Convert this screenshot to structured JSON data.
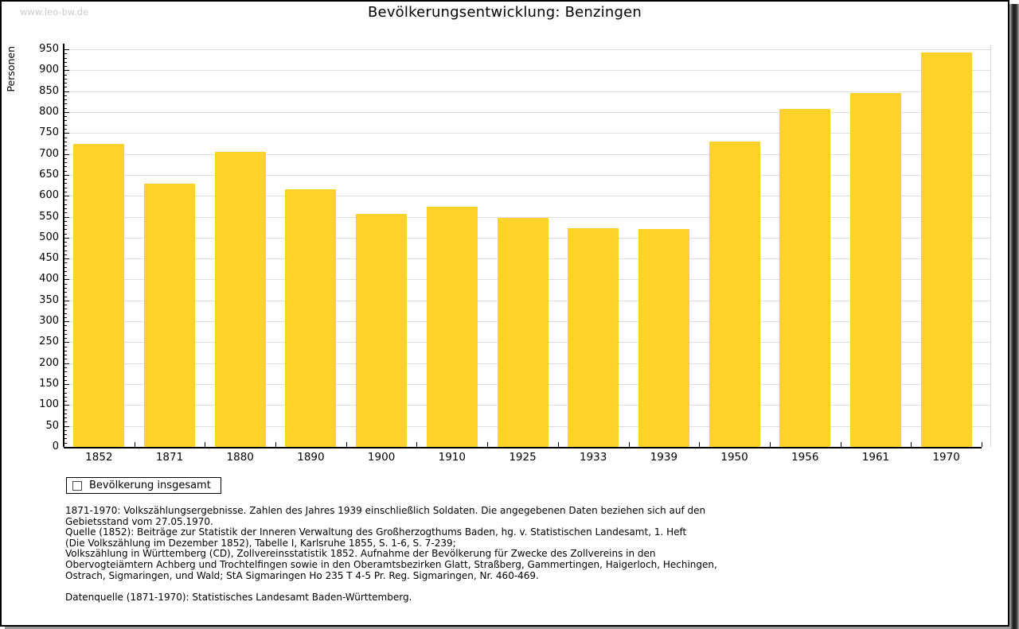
{
  "watermark": "www.leo-bw.de",
  "chart_data": {
    "type": "bar",
    "title": "Bevölkerungsentwicklung: Benzingen",
    "ylabel": "Personen",
    "xlabel": "",
    "categories": [
      "1852",
      "1871",
      "1880",
      "1890",
      "1900",
      "1910",
      "1925",
      "1933",
      "1939",
      "1950",
      "1956",
      "1961",
      "1970"
    ],
    "series": [
      {
        "name": "Bevölkerung insgesamt",
        "values": [
          723,
          628,
          705,
          615,
          556,
          573,
          547,
          522,
          520,
          729,
          807,
          845,
          943
        ]
      }
    ],
    "ylim": [
      0,
      950
    ],
    "ytick_step": 50,
    "y_minor_tick_step": 10,
    "grid": "horizontal",
    "legend_position": "bottom-left",
    "bar_color": "#FCD22B"
  },
  "legend": {
    "label": "Bevölkerung insgesamt",
    "swatch_color": "#FCD22B"
  },
  "notes": {
    "lines": [
      "1871-1970: Volkszählungsergebnisse. Zahlen des Jahres 1939 einschließlich Soldaten. Die angegebenen Daten beziehen sich auf den",
      "Gebietsstand vom 27.05.1970.",
      "Quelle (1852): Beiträge zur Statistik der Inneren Verwaltung des Großherzogthums Baden, hg. v. Statistischen Landesamt, 1. Heft",
      "(Die Volkszählung im Dezember 1852), Tabelle I, Karlsruhe 1855, S. 1-6, S. 7-239;",
      "Volkszählung in Württemberg (CD), Zollvereinsstatistik 1852. Aufnahme der Bevölkerung für Zwecke des Zollvereins in den",
      "Obervogteiämtern Achberg und Trochtelfingen sowie in den Oberamtsbezirken Glatt, Straßberg, Gammertingen, Haigerloch, Hechingen,",
      "Ostrach, Sigmaringen, und Wald; StA Sigmaringen Ho 235 T 4-5 Pr. Reg. Sigmaringen, Nr. 460-469.",
      "",
      "Datenquelle (1871-1970): Statistisches Landesamt Baden-Württemberg."
    ]
  },
  "colors": {
    "bar": "#FCD22B",
    "grid": "#DEDEDE",
    "axis": "#000000",
    "watermark": "#CCCCCC",
    "background": "#FFFFFF"
  }
}
